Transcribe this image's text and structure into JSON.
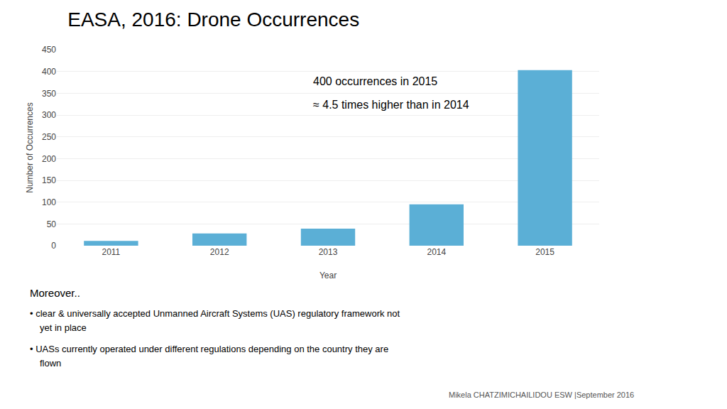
{
  "chart_data": {
    "type": "bar",
    "title": "EASA, 2016: Drone Occurrences",
    "xlabel": "Year",
    "ylabel": "Number of Occurrences",
    "categories": [
      "2011",
      "2012",
      "2013",
      "2014",
      "2015"
    ],
    "values": [
      11,
      28,
      39,
      95,
      403
    ],
    "color": "#5BAFD6",
    "ylim": [
      0,
      450
    ],
    "yticks": [
      0,
      50,
      100,
      150,
      200,
      250,
      300,
      350,
      400,
      450
    ],
    "grid": true,
    "annotations": [
      "400 occurrences in 2015",
      "≈ 4.5 times higher than in 2014",
      "Moreover..",
      "• clear & universally accepted Unmanned Aircraft Systems (UAS) regulatory framework not",
      "yet in place",
      "• UASs currently operated under different regulations depending on the country they are",
      "flown",
      "Mikela CHATZIMICHAILIDOU ESW |September 2016"
    ]
  }
}
